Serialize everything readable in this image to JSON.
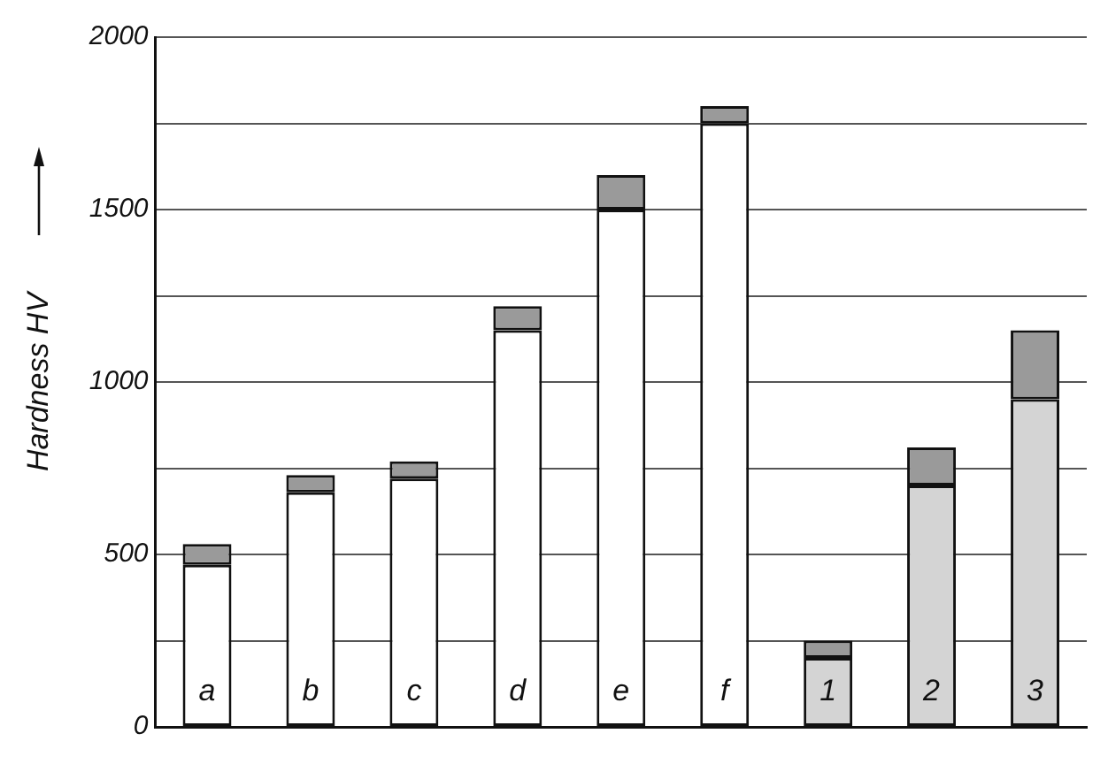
{
  "chart_data": {
    "type": "bar",
    "ylabel": "Hardness HV",
    "stacked": true,
    "grid": "y",
    "categories": [
      "a",
      "b",
      "c",
      "d",
      "e",
      "f",
      "1",
      "2",
      "3"
    ],
    "series": [
      {
        "colors": [
          "#ffffff",
          "#ffffff",
          "#ffffff",
          "#ffffff",
          "#ffffff",
          "#ffffff",
          "#d4d4d4",
          "#d4d4d4",
          "#d4d4d4"
        ],
        "values": [
          470,
          680,
          720,
          1150,
          1500,
          1750,
          200,
          700,
          950
        ]
      },
      {
        "color": "#9a9a9a",
        "values": [
          60,
          50,
          50,
          70,
          100,
          50,
          50,
          110,
          200
        ]
      }
    ],
    "ylim": [
      0,
      2000
    ],
    "yticks": [
      0,
      {
        "value": 250,
        "label": null
      },
      500,
      {
        "value": 750,
        "label": null
      },
      1000,
      {
        "value": 1250,
        "label": null
      },
      1500,
      {
        "value": 1750,
        "label": null
      },
      2000
    ]
  }
}
